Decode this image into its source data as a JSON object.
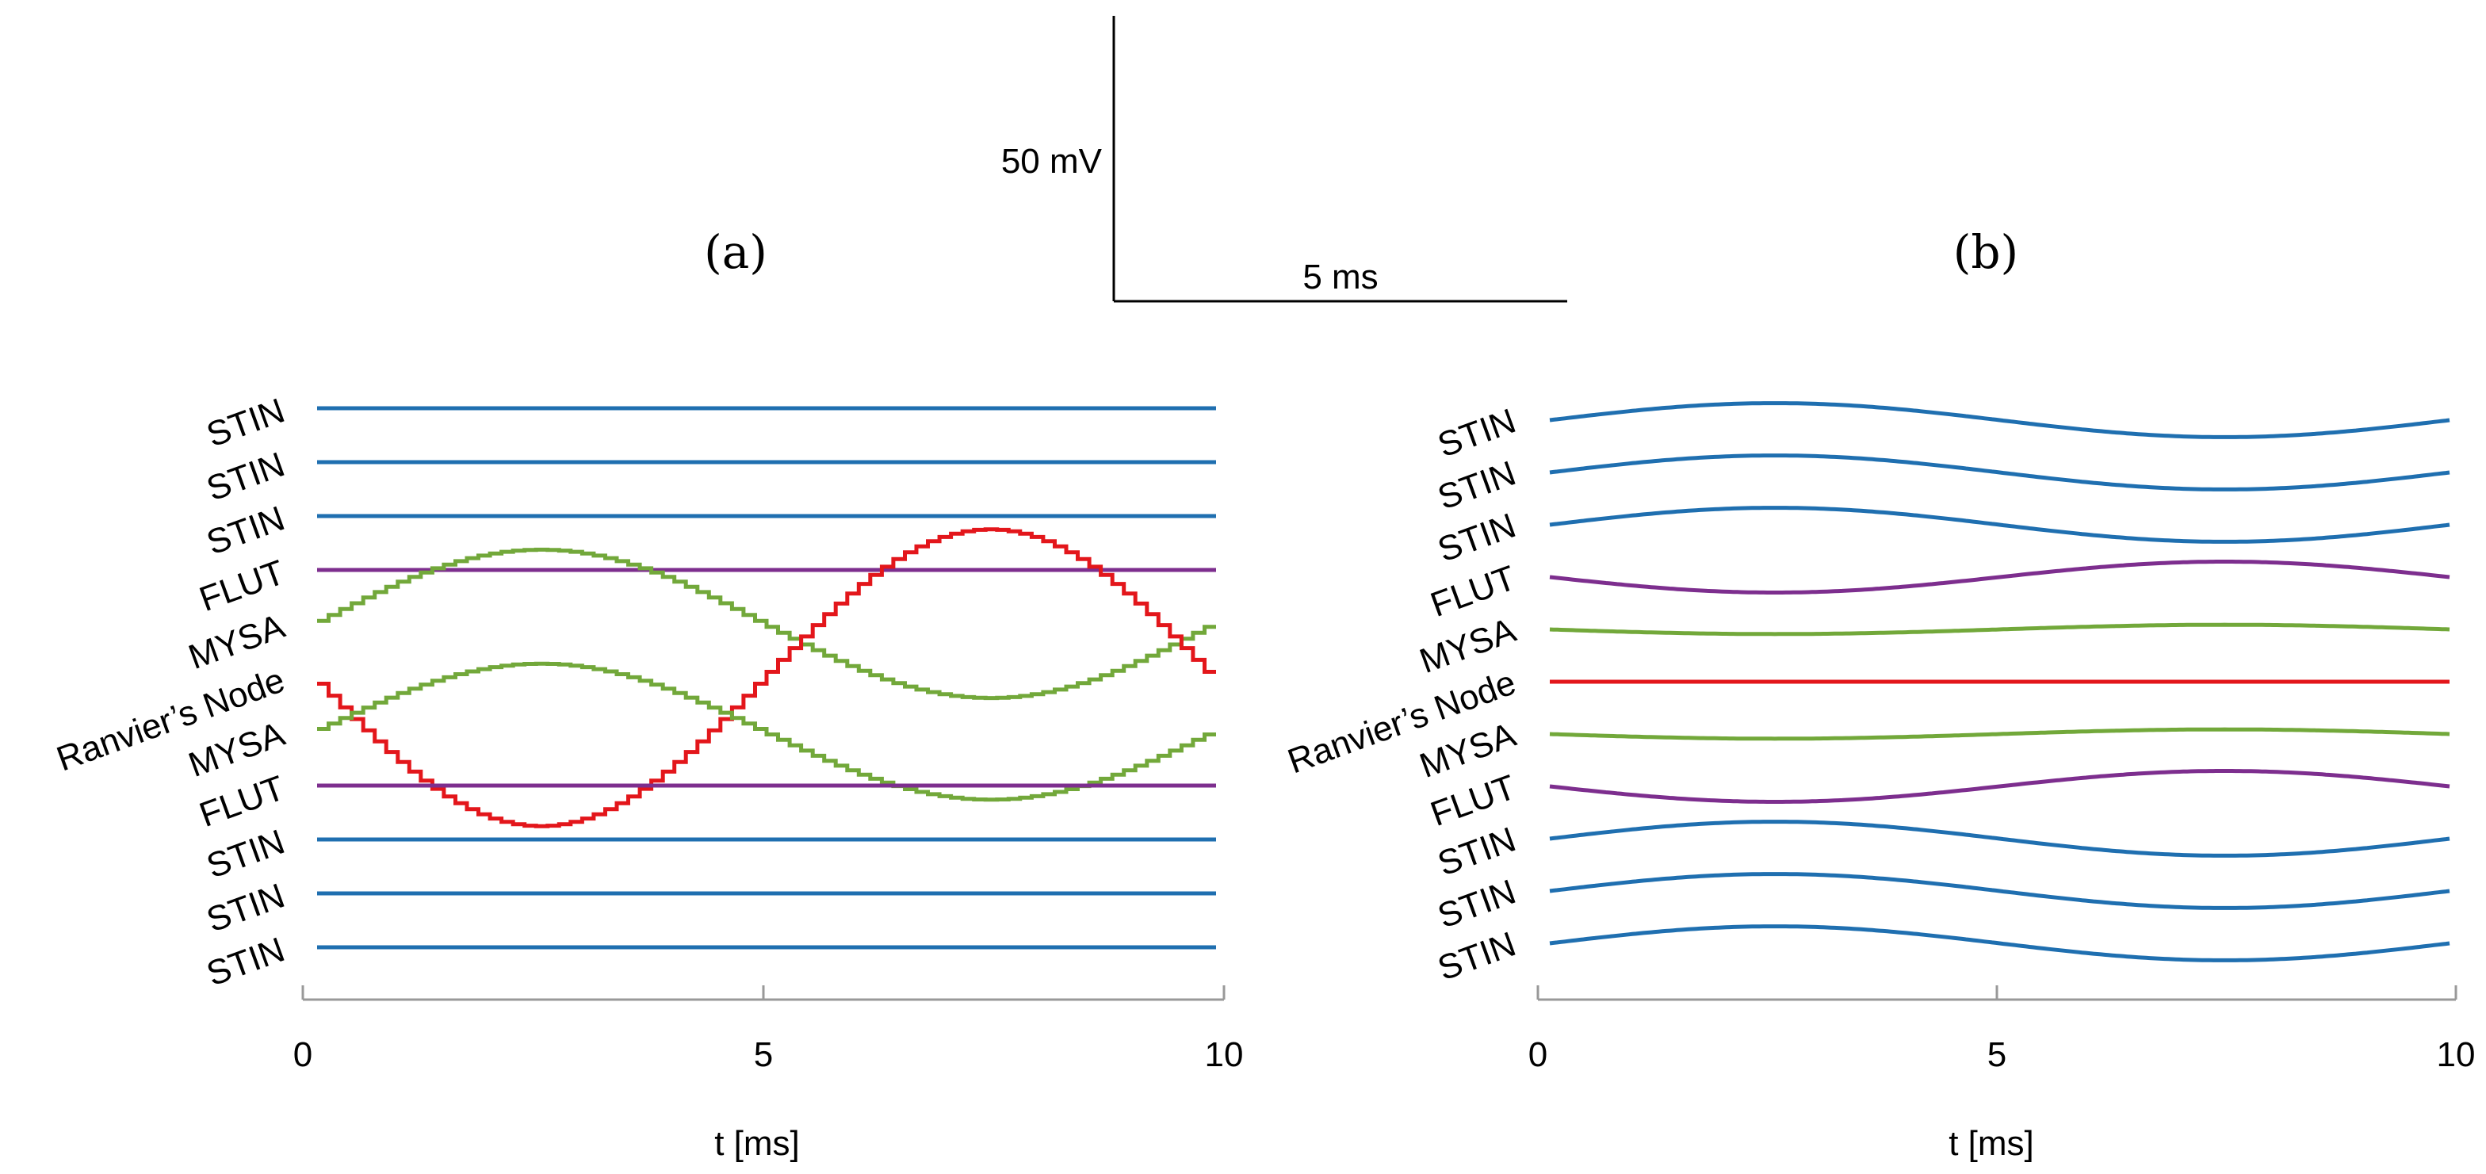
{
  "figure": {
    "scale_bar": {
      "voltage_label": "50 mV",
      "time_label": "5 ms",
      "voltage_mV": 50,
      "time_ms": 5
    },
    "colors": {
      "STIN": "#1f6fb0",
      "FLUT": "#7d2e8e",
      "MYSA": "#72a83a",
      "Ranvier's Node": "#e3161b",
      "axis": "#999999",
      "text": "#000000"
    }
  },
  "chart_data": [
    {
      "type": "line",
      "panel_label": "(a)",
      "xlabel": "t [ms]",
      "ylabel": "",
      "xlim": [
        0,
        10
      ],
      "xticks": [
        0,
        5,
        10
      ],
      "xtick_labels": [
        "0",
        "5",
        "10"
      ],
      "style": "stepped",
      "trace_labels": [
        "STIN",
        "STIN",
        "STIN",
        "FLUT",
        "MYSA",
        "Ranvier’s Node",
        "MYSA",
        "FLUT",
        "STIN",
        "STIN",
        "STIN"
      ],
      "series": [
        {
          "name": "STIN",
          "type": "STIN",
          "amplitude": 0,
          "phase": 0
        },
        {
          "name": "STIN",
          "type": "STIN",
          "amplitude": 0,
          "phase": 0
        },
        {
          "name": "STIN",
          "type": "STIN",
          "amplitude": 0,
          "phase": 0
        },
        {
          "name": "FLUT",
          "type": "FLUT",
          "amplitude": 0,
          "phase": 0
        },
        {
          "name": "MYSA",
          "type": "MYSA",
          "amplitude": 2.4,
          "phase": 3.14159
        },
        {
          "name": "Ranvier’s Node",
          "type": "Ranvier's Node",
          "amplitude": 4.8,
          "phase": 0
        },
        {
          "name": "MYSA",
          "type": "MYSA",
          "amplitude": 2.2,
          "phase": 3.14159
        },
        {
          "name": "FLUT",
          "type": "FLUT",
          "amplitude": 0,
          "phase": 0
        },
        {
          "name": "STIN",
          "type": "STIN",
          "amplitude": 0,
          "phase": 0
        },
        {
          "name": "STIN",
          "type": "STIN",
          "amplitude": 0,
          "phase": 0
        },
        {
          "name": "STIN",
          "type": "STIN",
          "amplitude": 0,
          "phase": 0
        }
      ]
    },
    {
      "type": "line",
      "panel_label": "(b)",
      "xlabel": "t [ms]",
      "ylabel": "",
      "xlim": [
        0,
        10
      ],
      "xticks": [
        0,
        5,
        10
      ],
      "xtick_labels": [
        "0",
        "5",
        "10"
      ],
      "style": "smooth",
      "trace_labels": [
        "STIN",
        "STIN",
        "STIN",
        "FLUT",
        "MYSA",
        "Ranvier’s Node",
        "MYSA",
        "FLUT",
        "STIN",
        "STIN",
        "STIN"
      ],
      "series": [
        {
          "name": "STIN",
          "type": "STIN",
          "amplitude": 0.55,
          "phase": 3.14159
        },
        {
          "name": "STIN",
          "type": "STIN",
          "amplitude": 0.55,
          "phase": 3.14159
        },
        {
          "name": "STIN",
          "type": "STIN",
          "amplitude": 0.55,
          "phase": 3.14159
        },
        {
          "name": "FLUT",
          "type": "FLUT",
          "amplitude": 0.5,
          "phase": 0
        },
        {
          "name": "MYSA",
          "type": "MYSA",
          "amplitude": 0.15,
          "phase": 0
        },
        {
          "name": "Ranvier’s Node",
          "type": "Ranvier's Node",
          "amplitude": 0,
          "phase": 0
        },
        {
          "name": "MYSA",
          "type": "MYSA",
          "amplitude": 0.15,
          "phase": 0
        },
        {
          "name": "FLUT",
          "type": "FLUT",
          "amplitude": 0.5,
          "phase": 0
        },
        {
          "name": "STIN",
          "type": "STIN",
          "amplitude": 0.55,
          "phase": 3.14159
        },
        {
          "name": "STIN",
          "type": "STIN",
          "amplitude": 0.55,
          "phase": 3.14159
        },
        {
          "name": "STIN",
          "type": "STIN",
          "amplitude": 0.55,
          "phase": 3.14159
        }
      ]
    }
  ]
}
